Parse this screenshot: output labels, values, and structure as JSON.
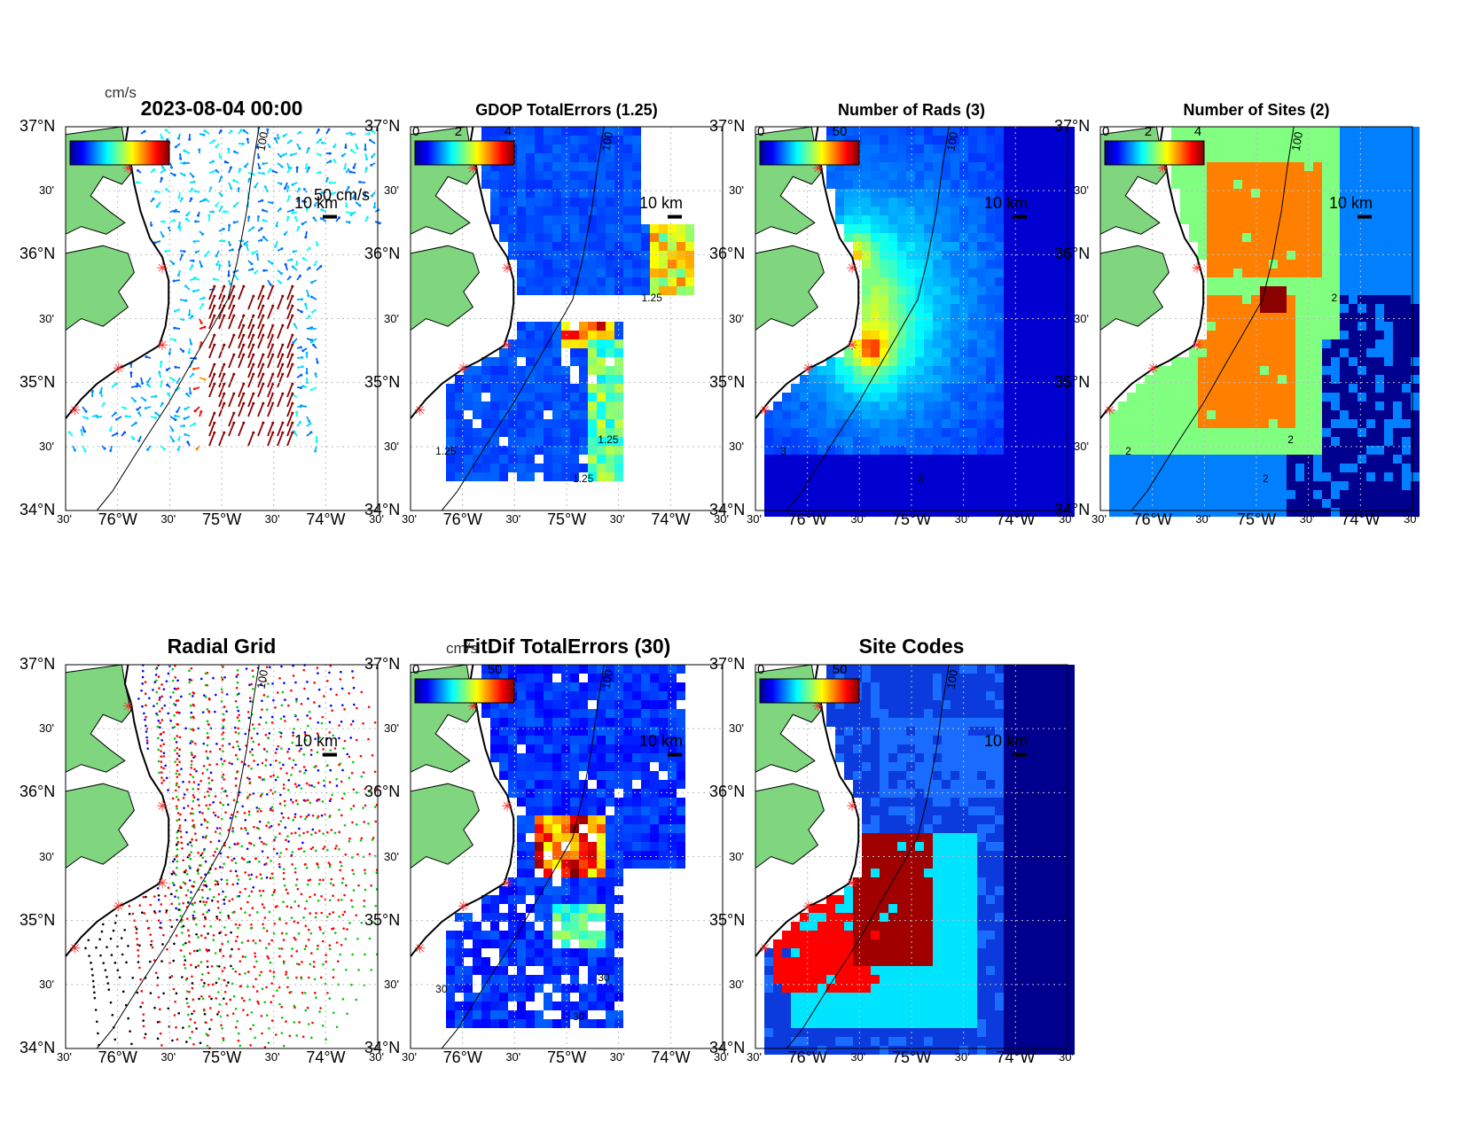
{
  "figure": {
    "panels": [
      {
        "id": "p1",
        "title": "2023-08-04 00:00",
        "unit": "cm/s",
        "cb_ticks": [],
        "velocity_scale": "50 cm/s",
        "scale_bar": "10 km",
        "kind": "vectors"
      },
      {
        "id": "p2",
        "title": "GDOP TotalErrors (1.25)",
        "unit": "",
        "cb_ticks": [
          "0",
          "2",
          "4"
        ],
        "scale_bar": "10 km",
        "kind": "field",
        "contour_labels": [
          "1.25",
          "1.25",
          "1.25",
          "1.25"
        ]
      },
      {
        "id": "p3",
        "title": "Number of Rads (3)",
        "unit": "",
        "cb_ticks": [
          "0",
          "50"
        ],
        "scale_bar": "10 km",
        "kind": "field",
        "contour_labels": [
          "3",
          "3"
        ]
      },
      {
        "id": "p4",
        "title": "Number of Sites (2)",
        "unit": "",
        "cb_ticks": [
          "0",
          "2",
          "4"
        ],
        "scale_bar": "10 km",
        "kind": "field",
        "contour_labels": [
          "2",
          "2",
          "2",
          "2"
        ]
      },
      {
        "id": "p5",
        "title": "Radial Grid",
        "unit": "",
        "cb_ticks": [],
        "scale_bar": "10 km",
        "kind": "radials"
      },
      {
        "id": "p6",
        "title": "FitDif TotalErrors (30)",
        "unit": "cm/s",
        "cb_ticks": [
          "0",
          "50"
        ],
        "scale_bar": "10 km",
        "kind": "field",
        "contour_labels": [
          "30",
          "30",
          "30"
        ]
      },
      {
        "id": "p7",
        "title": "Site Codes",
        "unit": "",
        "cb_ticks": [
          "0",
          "50"
        ],
        "scale_bar": "10 km",
        "kind": "codes"
      }
    ],
    "lat_ticks": [
      "37°N",
      "30'",
      "36°N",
      "30'",
      "35°N",
      "30'",
      "34°N"
    ],
    "lon_ticks": [
      "30'",
      "76°W",
      "30'",
      "75°W",
      "30'",
      "74°W",
      "30'"
    ],
    "isobath_label": "100",
    "colors": {
      "land": "#7fd67f",
      "site_marker": "#ff2a2a",
      "coast": "#000000",
      "radial_sites": [
        "#0000ff",
        "#ff0000",
        "#00cc00",
        "#000000"
      ]
    }
  }
}
